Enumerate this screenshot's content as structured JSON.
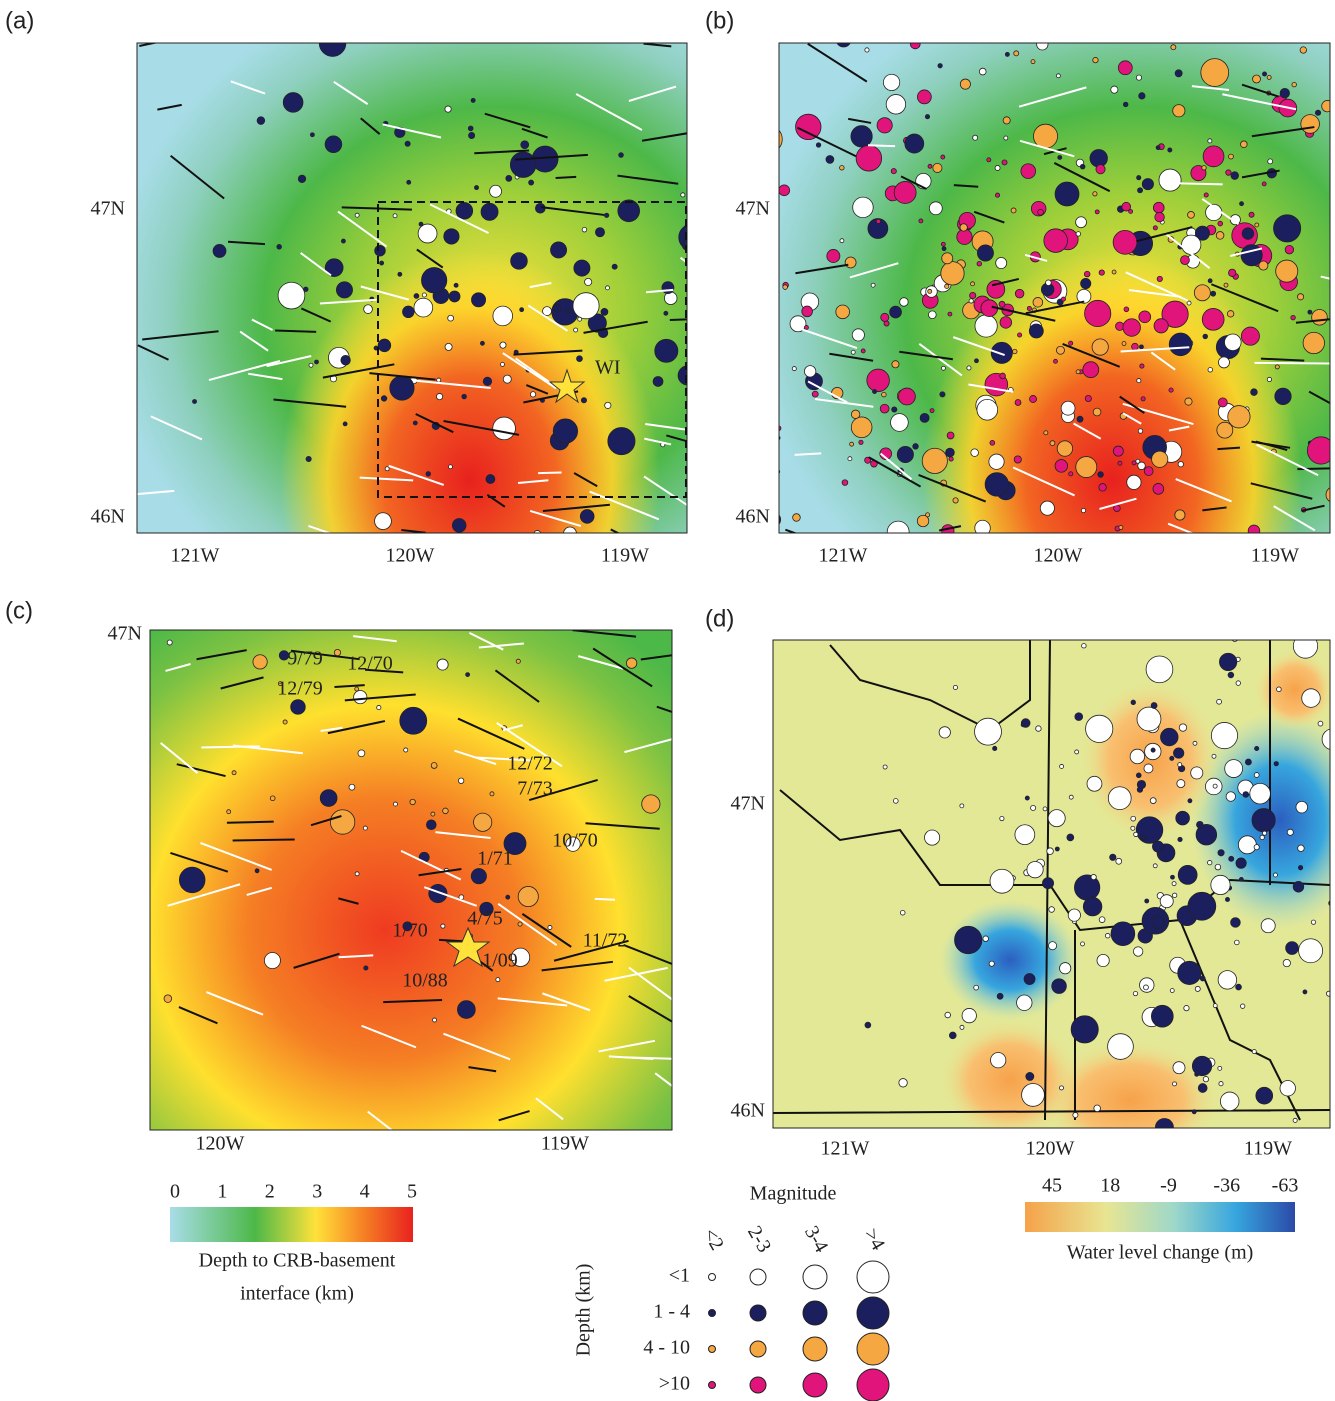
{
  "panels": [
    {
      "label": "(a)",
      "lat_labels": [
        "47N",
        "46N"
      ],
      "lon_labels": [
        "121W",
        "120W",
        "119W"
      ],
      "annotations": [
        "WI"
      ]
    },
    {
      "label": "(b)",
      "lat_labels": [
        "47N",
        "46N"
      ],
      "lon_labels": [
        "121W",
        "120W",
        "119W"
      ]
    },
    {
      "label": "(c)",
      "lat_labels": [
        "47N"
      ],
      "lon_labels": [
        "120W",
        "119W"
      ],
      "annotations": [
        "9/79",
        "12/70",
        "12/79",
        "12/72",
        "7/73",
        "10/70",
        "1/71",
        "1/70",
        "4/75",
        "1/09",
        "11/72",
        "10/88"
      ]
    },
    {
      "label": "(d)",
      "lat_labels": [
        "47N",
        "46N"
      ],
      "lon_labels": [
        "121W",
        "120W",
        "119W"
      ]
    }
  ],
  "depth_colorbar": {
    "ticks": [
      0,
      1,
      2,
      3,
      4,
      5
    ],
    "title_lines": [
      "Depth to CRB-basement",
      "interface (km)"
    ]
  },
  "legend": {
    "title": "Magnitude",
    "magnitude_classes": [
      "<2",
      "2-3",
      "3-4",
      ">4"
    ],
    "depth_title": "Depth (km)",
    "depth_classes": [
      "<1",
      "1 - 4",
      "4 - 10",
      ">10"
    ]
  },
  "water_colorbar": {
    "ticks": [
      45,
      18,
      -9,
      -36,
      -63
    ],
    "title": "Water level change (m)"
  }
}
